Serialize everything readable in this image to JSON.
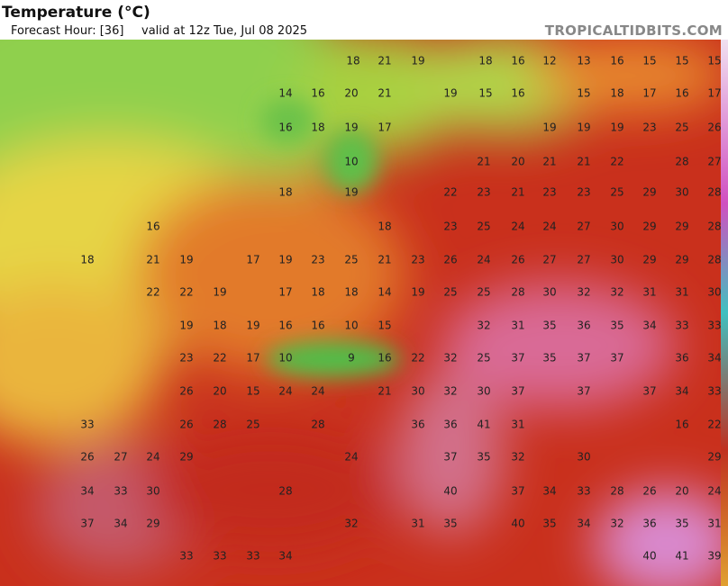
{
  "header": {
    "title": "Temperature (°C)",
    "forecast_hour": "Forecast Hour: [36]",
    "valid": "valid at 12z Tue, Jul 08 2025",
    "site": "TROPICALTIDBITS.COM"
  },
  "labels": [
    [
      18,
      21,
      19,
      18,
      16,
      12,
      13,
      16,
      15,
      15,
      15
    ],
    [
      14,
      16,
      20,
      21,
      19,
      15,
      16,
      15,
      18,
      17,
      16,
      17
    ],
    [
      16,
      18,
      19,
      17,
      19,
      19,
      19,
      23,
      25,
      26
    ],
    [
      10,
      21,
      20,
      21,
      21,
      22,
      28,
      27
    ],
    [
      18,
      19,
      22,
      23,
      21,
      23,
      23,
      25,
      29,
      30,
      28
    ],
    [
      16,
      18,
      23,
      25,
      24,
      24,
      27,
      30,
      29,
      29,
      28
    ],
    [
      18,
      21,
      19,
      17,
      19,
      23,
      25,
      21,
      23,
      26,
      24,
      26,
      27,
      27,
      30,
      29,
      29,
      28
    ],
    [
      22,
      22,
      19,
      17,
      18,
      18,
      14,
      19,
      25,
      25,
      28,
      30,
      32,
      32,
      31,
      31,
      30
    ],
    [
      19,
      18,
      19,
      16,
      16,
      10,
      15,
      32,
      31,
      35,
      36,
      35,
      34,
      33,
      33
    ],
    [
      23,
      22,
      17,
      10,
      9,
      16,
      22,
      32,
      25,
      37,
      35,
      37,
      37,
      36,
      34
    ],
    [
      26,
      20,
      15,
      24,
      24,
      21,
      30,
      32,
      30,
      37,
      37,
      37,
      34,
      33
    ],
    [
      33,
      26,
      28,
      25,
      28,
      36,
      36,
      41,
      31,
      16,
      22
    ],
    [
      26,
      27,
      24,
      29,
      24,
      37,
      35,
      32,
      30,
      29
    ],
    [
      34,
      33,
      30,
      28,
      40,
      37,
      34,
      33,
      28,
      26,
      20,
      24
    ],
    [
      37,
      34,
      29,
      32,
      31,
      35,
      40,
      35,
      34,
      32,
      36,
      35,
      31
    ],
    [
      33,
      33,
      33,
      34,
      40,
      41,
      39
    ]
  ]
}
